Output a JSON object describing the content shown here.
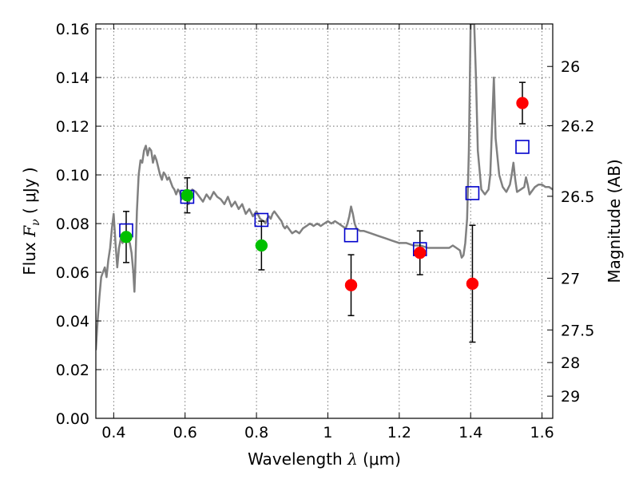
{
  "chart_data": {
    "type": "scatter",
    "xlabel": {
      "prefix": "Wavelength  ",
      "symbol": "λ",
      "unit": " (μm)"
    },
    "ylabel": {
      "prefix": "Flux  ",
      "symbol": "F",
      "subscript": "ν",
      "unit": "  ( μJy )"
    },
    "ylabel_right": "Magnitude (AB)",
    "xlim": [
      0.35,
      1.63
    ],
    "ylim": [
      0.0,
      0.162
    ],
    "x_ticks": [
      {
        "value": 0.4,
        "label": "0.4"
      },
      {
        "value": 0.6,
        "label": "0.6"
      },
      {
        "value": 0.8,
        "label": "0.8"
      },
      {
        "value": 1.0,
        "label": "1"
      },
      {
        "value": 1.2,
        "label": "1.2"
      },
      {
        "value": 1.4,
        "label": "1.4"
      },
      {
        "value": 1.6,
        "label": "1.6"
      }
    ],
    "y_ticks": [
      {
        "value": 0.0,
        "label": "0.00"
      },
      {
        "value": 0.02,
        "label": "0.02"
      },
      {
        "value": 0.04,
        "label": "0.04"
      },
      {
        "value": 0.06,
        "label": "0.06"
      },
      {
        "value": 0.08,
        "label": "0.08"
      },
      {
        "value": 0.1,
        "label": "0.10"
      },
      {
        "value": 0.12,
        "label": "0.12"
      },
      {
        "value": 0.14,
        "label": "0.14"
      },
      {
        "value": 0.16,
        "label": "0.16"
      }
    ],
    "magnitude_ticks": [
      {
        "mag": 26.0,
        "label": "26"
      },
      {
        "mag": 26.2,
        "label": "26.2"
      },
      {
        "mag": 26.5,
        "label": "26.5"
      },
      {
        "mag": 27.0,
        "label": "27"
      },
      {
        "mag": 27.5,
        "label": "27.5"
      },
      {
        "mag": 28.0,
        "label": "28"
      },
      {
        "mag": 29.0,
        "label": "29"
      }
    ],
    "grid": true,
    "colors": {
      "spectrum": "#808080",
      "optical_points": "#00c000",
      "nir_points": "#ff0000",
      "model_squares": "#0000cc",
      "error_bars": "#000000",
      "grid": "#555555"
    },
    "spectrum": [
      [
        0.35,
        0.028
      ],
      [
        0.355,
        0.04
      ],
      [
        0.36,
        0.05
      ],
      [
        0.365,
        0.058
      ],
      [
        0.37,
        0.06
      ],
      [
        0.375,
        0.062
      ],
      [
        0.38,
        0.058
      ],
      [
        0.385,
        0.065
      ],
      [
        0.39,
        0.07
      ],
      [
        0.395,
        0.078
      ],
      [
        0.4,
        0.084
      ],
      [
        0.405,
        0.072
      ],
      [
        0.41,
        0.062
      ],
      [
        0.415,
        0.07
      ],
      [
        0.42,
        0.074
      ],
      [
        0.425,
        0.072
      ],
      [
        0.43,
        0.076
      ],
      [
        0.435,
        0.074
      ],
      [
        0.44,
        0.073
      ],
      [
        0.445,
        0.072
      ],
      [
        0.45,
        0.068
      ],
      [
        0.455,
        0.06
      ],
      [
        0.458,
        0.052
      ],
      [
        0.46,
        0.06
      ],
      [
        0.465,
        0.085
      ],
      [
        0.47,
        0.1
      ],
      [
        0.475,
        0.106
      ],
      [
        0.48,
        0.105
      ],
      [
        0.485,
        0.11
      ],
      [
        0.49,
        0.112
      ],
      [
        0.495,
        0.108
      ],
      [
        0.5,
        0.111
      ],
      [
        0.505,
        0.11
      ],
      [
        0.51,
        0.105
      ],
      [
        0.515,
        0.108
      ],
      [
        0.52,
        0.106
      ],
      [
        0.525,
        0.103
      ],
      [
        0.53,
        0.1
      ],
      [
        0.535,
        0.098
      ],
      [
        0.54,
        0.101
      ],
      [
        0.545,
        0.1
      ],
      [
        0.55,
        0.098
      ],
      [
        0.555,
        0.099
      ],
      [
        0.56,
        0.097
      ],
      [
        0.565,
        0.095
      ],
      [
        0.57,
        0.094
      ],
      [
        0.575,
        0.092
      ],
      [
        0.58,
        0.094
      ],
      [
        0.585,
        0.093
      ],
      [
        0.59,
        0.09
      ],
      [
        0.6,
        0.092
      ],
      [
        0.605,
        0.091
      ],
      [
        0.61,
        0.088
      ],
      [
        0.615,
        0.092
      ],
      [
        0.62,
        0.094
      ],
      [
        0.63,
        0.093
      ],
      [
        0.64,
        0.091
      ],
      [
        0.65,
        0.089
      ],
      [
        0.66,
        0.092
      ],
      [
        0.67,
        0.09
      ],
      [
        0.68,
        0.093
      ],
      [
        0.69,
        0.091
      ],
      [
        0.7,
        0.09
      ],
      [
        0.71,
        0.088
      ],
      [
        0.72,
        0.091
      ],
      [
        0.73,
        0.087
      ],
      [
        0.74,
        0.089
      ],
      [
        0.75,
        0.086
      ],
      [
        0.76,
        0.088
      ],
      [
        0.77,
        0.084
      ],
      [
        0.78,
        0.086
      ],
      [
        0.79,
        0.083
      ],
      [
        0.8,
        0.085
      ],
      [
        0.81,
        0.082
      ],
      [
        0.82,
        0.081
      ],
      [
        0.825,
        0.08
      ],
      [
        0.83,
        0.082
      ],
      [
        0.835,
        0.083
      ],
      [
        0.84,
        0.082
      ],
      [
        0.845,
        0.084
      ],
      [
        0.85,
        0.085
      ],
      [
        0.855,
        0.084
      ],
      [
        0.86,
        0.083
      ],
      [
        0.865,
        0.082
      ],
      [
        0.87,
        0.081
      ],
      [
        0.875,
        0.079
      ],
      [
        0.88,
        0.078
      ],
      [
        0.885,
        0.079
      ],
      [
        0.89,
        0.078
      ],
      [
        0.895,
        0.077
      ],
      [
        0.9,
        0.076
      ],
      [
        0.91,
        0.077
      ],
      [
        0.92,
        0.076
      ],
      [
        0.93,
        0.078
      ],
      [
        0.94,
        0.079
      ],
      [
        0.95,
        0.08
      ],
      [
        0.96,
        0.079
      ],
      [
        0.97,
        0.08
      ],
      [
        0.98,
        0.079
      ],
      [
        0.99,
        0.08
      ],
      [
        1.0,
        0.081
      ],
      [
        1.01,
        0.08
      ],
      [
        1.02,
        0.081
      ],
      [
        1.03,
        0.08
      ],
      [
        1.04,
        0.079
      ],
      [
        1.05,
        0.078
      ],
      [
        1.055,
        0.08
      ],
      [
        1.06,
        0.083
      ],
      [
        1.065,
        0.087
      ],
      [
        1.07,
        0.084
      ],
      [
        1.075,
        0.08
      ],
      [
        1.08,
        0.078
      ],
      [
        1.09,
        0.077
      ],
      [
        1.1,
        0.077
      ],
      [
        1.12,
        0.076
      ],
      [
        1.14,
        0.075
      ],
      [
        1.16,
        0.074
      ],
      [
        1.18,
        0.073
      ],
      [
        1.2,
        0.072
      ],
      [
        1.22,
        0.072
      ],
      [
        1.24,
        0.071
      ],
      [
        1.26,
        0.071
      ],
      [
        1.28,
        0.07
      ],
      [
        1.3,
        0.07
      ],
      [
        1.32,
        0.07
      ],
      [
        1.34,
        0.07
      ],
      [
        1.35,
        0.071
      ],
      [
        1.36,
        0.07
      ],
      [
        1.37,
        0.069
      ],
      [
        1.375,
        0.066
      ],
      [
        1.38,
        0.067
      ],
      [
        1.385,
        0.072
      ],
      [
        1.39,
        0.082
      ],
      [
        1.395,
        0.11
      ],
      [
        1.4,
        0.162
      ],
      [
        1.405,
        0.162
      ],
      [
        1.41,
        0.162
      ],
      [
        1.415,
        0.14
      ],
      [
        1.42,
        0.11
      ],
      [
        1.43,
        0.094
      ],
      [
        1.44,
        0.092
      ],
      [
        1.45,
        0.094
      ],
      [
        1.455,
        0.1
      ],
      [
        1.46,
        0.12
      ],
      [
        1.465,
        0.14
      ],
      [
        1.47,
        0.115
      ],
      [
        1.48,
        0.1
      ],
      [
        1.49,
        0.095
      ],
      [
        1.5,
        0.093
      ],
      [
        1.51,
        0.096
      ],
      [
        1.515,
        0.1
      ],
      [
        1.52,
        0.105
      ],
      [
        1.525,
        0.098
      ],
      [
        1.53,
        0.093
      ],
      [
        1.54,
        0.094
      ],
      [
        1.55,
        0.095
      ],
      [
        1.555,
        0.099
      ],
      [
        1.56,
        0.096
      ],
      [
        1.565,
        0.092
      ],
      [
        1.57,
        0.093
      ],
      [
        1.58,
        0.095
      ],
      [
        1.59,
        0.096
      ],
      [
        1.6,
        0.096
      ],
      [
        1.61,
        0.095
      ],
      [
        1.62,
        0.095
      ],
      [
        1.63,
        0.094
      ]
    ],
    "optical_points": [
      {
        "x": 0.435,
        "y": 0.0745,
        "yerr": 0.0105
      },
      {
        "x": 0.606,
        "y": 0.0916,
        "yerr": 0.0072
      },
      {
        "x": 0.814,
        "y": 0.071,
        "yerr": 0.01
      }
    ],
    "nir_points": [
      {
        "x": 1.065,
        "y": 0.0547,
        "yerr": 0.0125
      },
      {
        "x": 1.258,
        "y": 0.068,
        "yerr": 0.009
      },
      {
        "x": 1.405,
        "y": 0.0553,
        "yerr": 0.024
      },
      {
        "x": 1.545,
        "y": 0.1295,
        "yerr": 0.0085
      }
    ],
    "model_squares": [
      {
        "x": 0.435,
        "y": 0.0772
      },
      {
        "x": 0.606,
        "y": 0.091
      },
      {
        "x": 0.814,
        "y": 0.0815
      },
      {
        "x": 1.065,
        "y": 0.0752
      },
      {
        "x": 1.258,
        "y": 0.0695
      },
      {
        "x": 1.405,
        "y": 0.0925
      },
      {
        "x": 1.545,
        "y": 0.1115
      }
    ]
  }
}
